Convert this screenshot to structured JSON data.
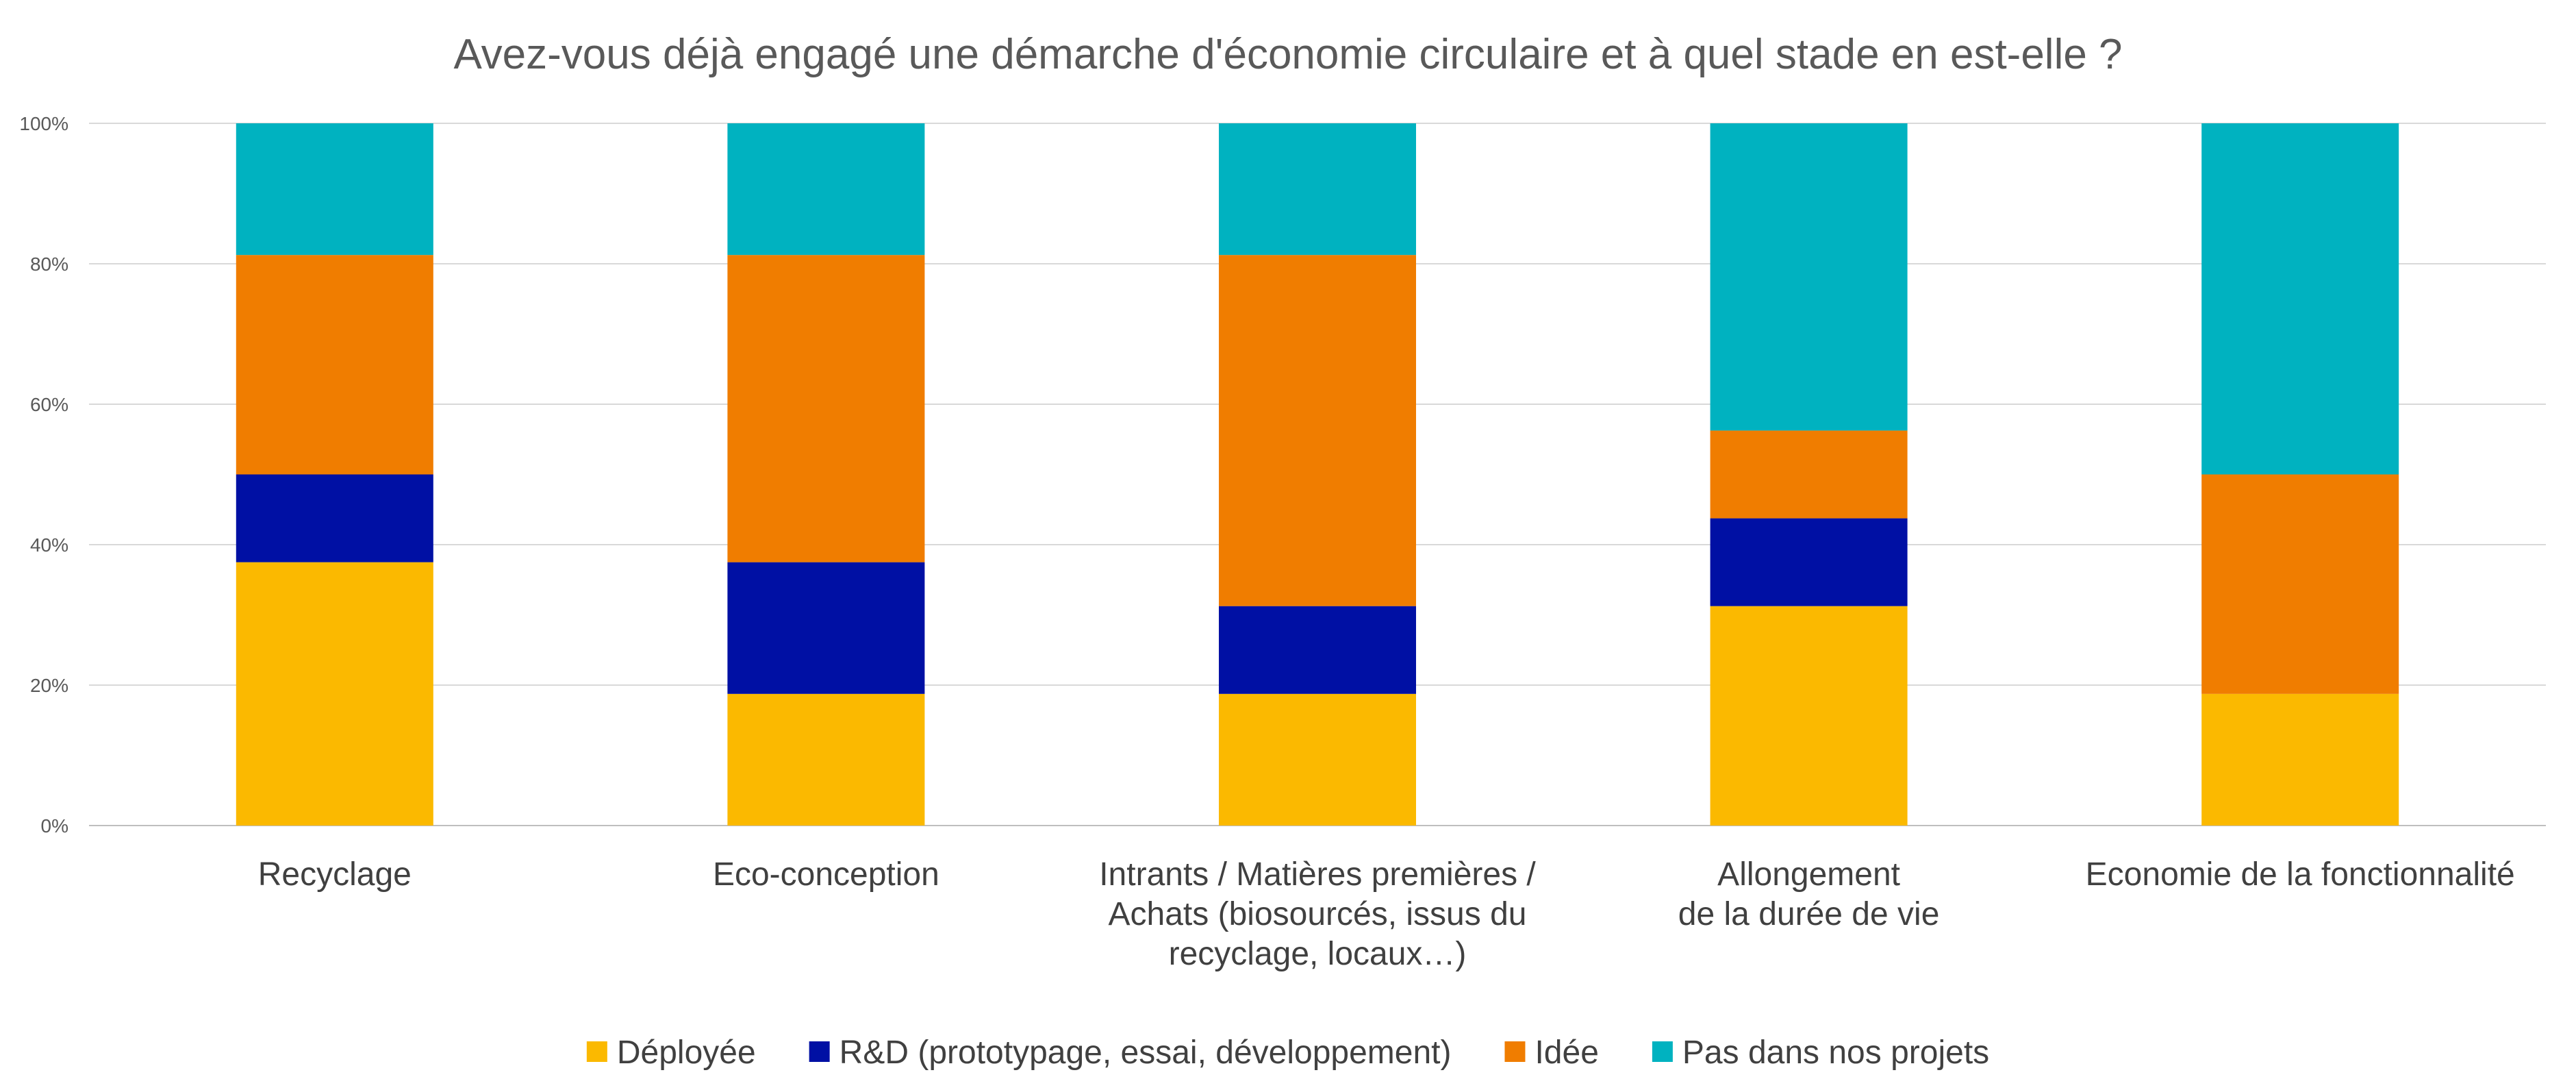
{
  "chart_data": {
    "type": "bar",
    "stacked": true,
    "title": "Avez-vous déjà engagé une démarche d'économie circulaire et à quel stade en est-elle ?",
    "categories": [
      [
        "Recyclage"
      ],
      [
        "Eco-conception"
      ],
      [
        "Intrants / Matières premières /",
        "Achats (biosourcés, issus du",
        "recyclage, locaux…)"
      ],
      [
        "Allongement",
        "de la durée de vie"
      ],
      [
        "Economie de la fonctionnalité"
      ]
    ],
    "series": [
      {
        "name": "Déployée",
        "color": "#FBB900",
        "values": [
          37.5,
          18.75,
          18.75,
          31.25,
          18.75
        ]
      },
      {
        "name": "R&D (prototypage, essai, développement)",
        "color": "#0010A4",
        "values": [
          12.5,
          18.75,
          12.5,
          12.5,
          0
        ]
      },
      {
        "name": "Idée",
        "color": "#F07D00",
        "values": [
          31.25,
          43.75,
          50.0,
          12.5,
          31.25
        ]
      },
      {
        "name": "Pas dans nos projets",
        "color": "#00B2C0",
        "values": [
          18.75,
          18.75,
          18.75,
          43.75,
          50.0
        ]
      }
    ],
    "yticks": [
      "0%",
      "20%",
      "40%",
      "60%",
      "80%",
      "100%"
    ],
    "ylim": [
      0,
      100
    ],
    "grid": true,
    "legend": "bottom"
  }
}
